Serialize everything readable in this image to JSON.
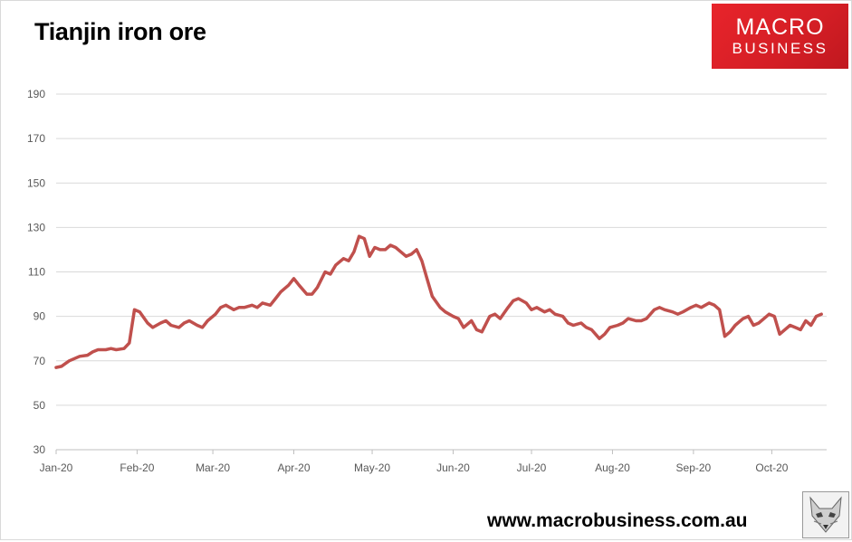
{
  "title": "Tianjin iron ore",
  "logo": {
    "line1": "MACRO",
    "line2": "BUSINESS"
  },
  "website": "www.macrobusiness.com.au",
  "colors": {
    "series": "#c0504d",
    "logo_red": "#e8242b",
    "grid": "#d9d9d9"
  },
  "chart_data": {
    "type": "line",
    "title": "Tianjin iron ore",
    "xlabel": "",
    "ylabel": "",
    "ylim": [
      30,
      190
    ],
    "yticks": [
      30,
      50,
      70,
      90,
      110,
      130,
      150,
      170,
      190
    ],
    "xlim": [
      "2020-01-01",
      "2020-10-22"
    ],
    "xticks": [
      {
        "label": "Jan-20",
        "date": "2020-01-01"
      },
      {
        "label": "Feb-20",
        "date": "2020-02-01"
      },
      {
        "label": "Mar-20",
        "date": "2020-03-01"
      },
      {
        "label": "Apr-20",
        "date": "2020-04-01"
      },
      {
        "label": "May-20",
        "date": "2020-05-01"
      },
      {
        "label": "Jun-20",
        "date": "2020-06-01"
      },
      {
        "label": "Jul-20",
        "date": "2020-07-01"
      },
      {
        "label": "Aug-20",
        "date": "2020-08-01"
      },
      {
        "label": "Sep-20",
        "date": "2020-09-01"
      },
      {
        "label": "Oct-20",
        "date": "2020-10-01"
      }
    ],
    "grid": true,
    "legend": "none",
    "series": [
      {
        "color": "#c0504d",
        "points": [
          [
            "2020-01-01",
            67
          ],
          [
            "2020-01-03",
            67.5
          ],
          [
            "2020-01-06",
            70
          ],
          [
            "2020-01-08",
            71
          ],
          [
            "2020-01-10",
            72
          ],
          [
            "2020-01-13",
            72.5
          ],
          [
            "2020-01-15",
            74
          ],
          [
            "2020-01-17",
            75
          ],
          [
            "2020-01-20",
            75
          ],
          [
            "2020-01-22",
            75.5
          ],
          [
            "2020-01-24",
            75
          ],
          [
            "2020-01-27",
            75.5
          ],
          [
            "2020-01-29",
            78
          ],
          [
            "2020-01-31",
            93
          ],
          [
            "2020-02-02",
            92
          ],
          [
            "2020-02-05",
            87
          ],
          [
            "2020-02-07",
            85
          ],
          [
            "2020-02-10",
            87
          ],
          [
            "2020-02-12",
            88
          ],
          [
            "2020-02-14",
            86
          ],
          [
            "2020-02-17",
            85
          ],
          [
            "2020-02-19",
            87
          ],
          [
            "2020-02-21",
            88
          ],
          [
            "2020-02-24",
            86
          ],
          [
            "2020-02-26",
            85
          ],
          [
            "2020-02-28",
            88
          ],
          [
            "2020-03-02",
            91
          ],
          [
            "2020-03-04",
            94
          ],
          [
            "2020-03-06",
            95
          ],
          [
            "2020-03-09",
            93
          ],
          [
            "2020-03-11",
            94
          ],
          [
            "2020-03-13",
            94
          ],
          [
            "2020-03-16",
            95
          ],
          [
            "2020-03-18",
            94
          ],
          [
            "2020-03-20",
            96
          ],
          [
            "2020-03-23",
            95
          ],
          [
            "2020-03-25",
            98
          ],
          [
            "2020-03-27",
            101
          ],
          [
            "2020-03-30",
            104
          ],
          [
            "2020-04-01",
            107
          ],
          [
            "2020-04-03",
            104
          ],
          [
            "2020-04-06",
            100
          ],
          [
            "2020-04-08",
            100
          ],
          [
            "2020-04-10",
            103
          ],
          [
            "2020-04-13",
            110
          ],
          [
            "2020-04-15",
            109
          ],
          [
            "2020-04-17",
            113
          ],
          [
            "2020-04-20",
            116
          ],
          [
            "2020-04-22",
            115
          ],
          [
            "2020-04-24",
            119
          ],
          [
            "2020-04-26",
            126
          ],
          [
            "2020-04-28",
            125
          ],
          [
            "2020-04-30",
            117
          ],
          [
            "2020-05-02",
            121
          ],
          [
            "2020-05-04",
            120
          ],
          [
            "2020-05-06",
            120
          ],
          [
            "2020-05-08",
            122
          ],
          [
            "2020-05-10",
            121
          ],
          [
            "2020-05-12",
            119
          ],
          [
            "2020-05-14",
            117
          ],
          [
            "2020-05-16",
            118
          ],
          [
            "2020-05-18",
            120
          ],
          [
            "2020-05-20",
            115
          ],
          [
            "2020-05-22",
            107
          ],
          [
            "2020-05-24",
            99
          ],
          [
            "2020-05-27",
            94
          ],
          [
            "2020-05-29",
            92
          ],
          [
            "2020-06-01",
            90
          ],
          [
            "2020-06-03",
            89
          ],
          [
            "2020-06-05",
            85
          ],
          [
            "2020-06-08",
            88
          ],
          [
            "2020-06-10",
            84
          ],
          [
            "2020-06-12",
            83
          ],
          [
            "2020-06-15",
            90
          ],
          [
            "2020-06-17",
            91
          ],
          [
            "2020-06-19",
            89
          ],
          [
            "2020-06-22",
            94
          ],
          [
            "2020-06-24",
            97
          ],
          [
            "2020-06-26",
            98
          ],
          [
            "2020-06-29",
            96
          ],
          [
            "2020-07-01",
            93
          ],
          [
            "2020-07-03",
            94
          ],
          [
            "2020-07-06",
            92
          ],
          [
            "2020-07-08",
            93
          ],
          [
            "2020-07-10",
            91
          ],
          [
            "2020-07-13",
            90
          ],
          [
            "2020-07-15",
            87
          ],
          [
            "2020-07-17",
            86
          ],
          [
            "2020-07-20",
            87
          ],
          [
            "2020-07-22",
            85
          ],
          [
            "2020-07-24",
            84
          ],
          [
            "2020-07-27",
            80
          ],
          [
            "2020-07-29",
            82
          ],
          [
            "2020-07-31",
            85
          ],
          [
            "2020-08-03",
            86
          ],
          [
            "2020-08-05",
            87
          ],
          [
            "2020-08-07",
            89
          ],
          [
            "2020-08-10",
            88
          ],
          [
            "2020-08-12",
            88
          ],
          [
            "2020-08-14",
            89
          ],
          [
            "2020-08-17",
            93
          ],
          [
            "2020-08-19",
            94
          ],
          [
            "2020-08-21",
            93
          ],
          [
            "2020-08-24",
            92
          ],
          [
            "2020-08-26",
            91
          ],
          [
            "2020-08-28",
            92
          ],
          [
            "2020-08-31",
            94
          ],
          [
            "2020-09-02",
            95
          ],
          [
            "2020-09-04",
            94
          ],
          [
            "2020-09-07",
            96
          ],
          [
            "2020-09-09",
            95
          ],
          [
            "2020-09-11",
            93
          ],
          [
            "2020-09-13",
            81
          ],
          [
            "2020-09-15",
            83
          ],
          [
            "2020-09-17",
            86
          ],
          [
            "2020-09-20",
            89
          ],
          [
            "2020-09-22",
            90
          ],
          [
            "2020-09-24",
            86
          ],
          [
            "2020-09-26",
            87
          ],
          [
            "2020-09-28",
            89
          ],
          [
            "2020-09-30",
            91
          ],
          [
            "2020-10-02",
            90
          ],
          [
            "2020-10-04",
            82
          ],
          [
            "2020-10-06",
            84
          ],
          [
            "2020-10-08",
            86
          ],
          [
            "2020-10-10",
            85
          ],
          [
            "2020-10-12",
            84
          ],
          [
            "2020-10-14",
            88
          ],
          [
            "2020-10-16",
            86
          ],
          [
            "2020-10-18",
            90
          ],
          [
            "2020-10-20",
            91
          ]
        ]
      }
    ]
  }
}
